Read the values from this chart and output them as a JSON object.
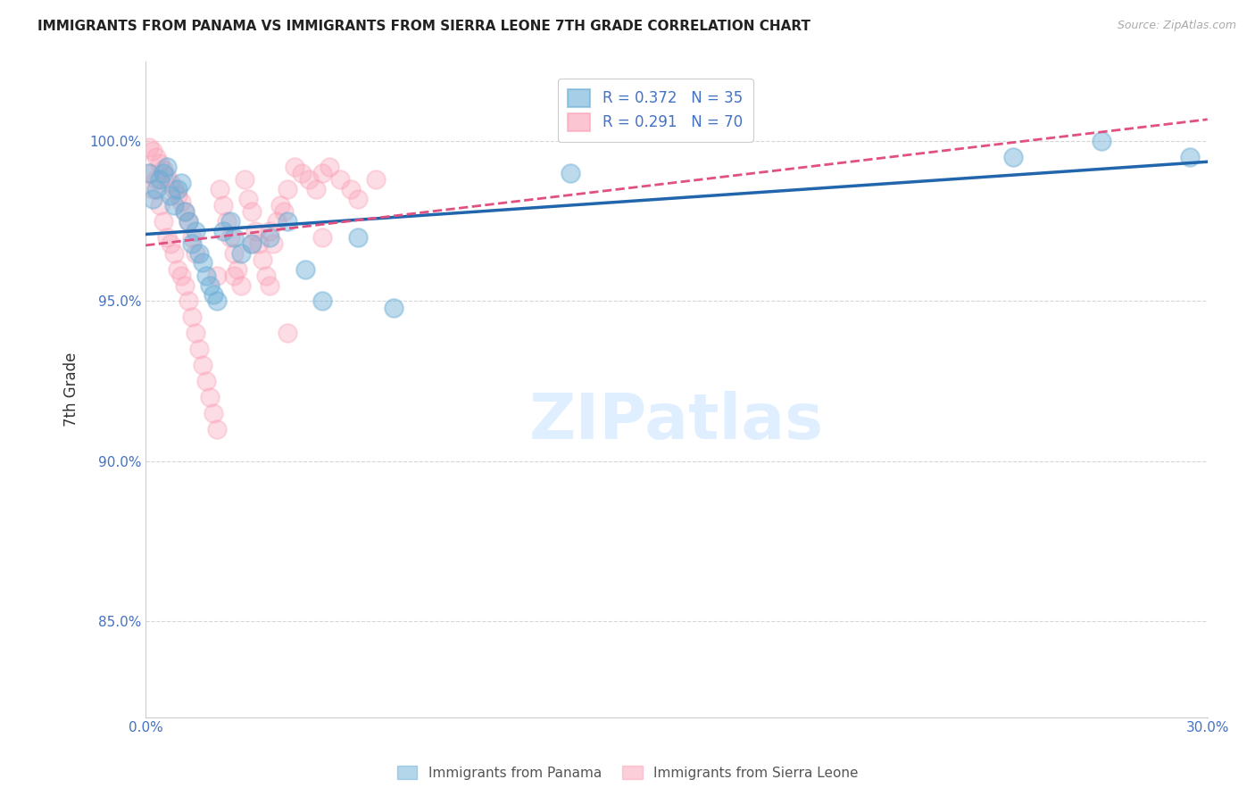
{
  "title": "IMMIGRANTS FROM PANAMA VS IMMIGRANTS FROM SIERRA LEONE 7TH GRADE CORRELATION CHART",
  "source": "Source: ZipAtlas.com",
  "ylabel": "7th Grade",
  "ytick_labels": [
    "85.0%",
    "90.0%",
    "95.0%",
    "100.0%"
  ],
  "ytick_values": [
    0.85,
    0.9,
    0.95,
    1.0
  ],
  "xlim": [
    0.0,
    0.3
  ],
  "ylim": [
    0.82,
    1.025
  ],
  "legend_panama": "R = 0.372   N = 35",
  "legend_sierraleone": "R = 0.291   N = 70",
  "color_panama": "#6baed6",
  "color_sierraleone": "#fa9fb5",
  "line_color_panama": "#2166ac",
  "line_color_sierraleone": "#e05080",
  "panama_x": [
    0.001,
    0.002,
    0.003,
    0.004,
    0.005,
    0.006,
    0.007,
    0.008,
    0.009,
    0.01,
    0.011,
    0.012,
    0.013,
    0.014,
    0.015,
    0.016,
    0.017,
    0.018,
    0.019,
    0.02,
    0.022,
    0.024,
    0.025,
    0.027,
    0.03,
    0.035,
    0.04,
    0.045,
    0.05,
    0.06,
    0.07,
    0.12,
    0.245,
    0.27,
    0.295
  ],
  "panama_y": [
    0.99,
    0.982,
    0.985,
    0.988,
    0.99,
    0.992,
    0.983,
    0.98,
    0.985,
    0.987,
    0.978,
    0.975,
    0.968,
    0.972,
    0.965,
    0.962,
    0.958,
    0.955,
    0.952,
    0.95,
    0.972,
    0.975,
    0.97,
    0.965,
    0.968,
    0.97,
    0.975,
    0.96,
    0.95,
    0.97,
    0.948,
    0.99,
    0.995,
    1.0,
    0.995
  ],
  "sierraleone_x": [
    0.001,
    0.002,
    0.003,
    0.004,
    0.005,
    0.006,
    0.007,
    0.008,
    0.009,
    0.01,
    0.011,
    0.012,
    0.013,
    0.014,
    0.015,
    0.016,
    0.017,
    0.018,
    0.019,
    0.02,
    0.021,
    0.022,
    0.023,
    0.024,
    0.025,
    0.026,
    0.027,
    0.028,
    0.029,
    0.03,
    0.031,
    0.032,
    0.033,
    0.034,
    0.035,
    0.036,
    0.037,
    0.038,
    0.039,
    0.04,
    0.042,
    0.044,
    0.046,
    0.048,
    0.05,
    0.052,
    0.055,
    0.058,
    0.06,
    0.065,
    0.001,
    0.002,
    0.003,
    0.004,
    0.005,
    0.006,
    0.007,
    0.008,
    0.009,
    0.01,
    0.011,
    0.012,
    0.013,
    0.014,
    0.02,
    0.025,
    0.03,
    0.035,
    0.04,
    0.05
  ],
  "sierraleone_y": [
    0.99,
    0.985,
    0.988,
    0.98,
    0.975,
    0.97,
    0.968,
    0.965,
    0.96,
    0.958,
    0.955,
    0.95,
    0.945,
    0.94,
    0.935,
    0.93,
    0.925,
    0.92,
    0.915,
    0.91,
    0.985,
    0.98,
    0.975,
    0.97,
    0.965,
    0.96,
    0.955,
    0.988,
    0.982,
    0.978,
    0.972,
    0.968,
    0.963,
    0.958,
    0.972,
    0.968,
    0.975,
    0.98,
    0.978,
    0.985,
    0.992,
    0.99,
    0.988,
    0.985,
    0.99,
    0.992,
    0.988,
    0.985,
    0.982,
    0.988,
    0.998,
    0.997,
    0.995,
    0.993,
    0.991,
    0.989,
    0.987,
    0.985,
    0.983,
    0.981,
    0.978,
    0.975,
    0.97,
    0.965,
    0.958,
    0.958,
    0.968,
    0.955,
    0.94,
    0.97
  ],
  "background_color": "#ffffff",
  "grid_color": "#cccccc"
}
